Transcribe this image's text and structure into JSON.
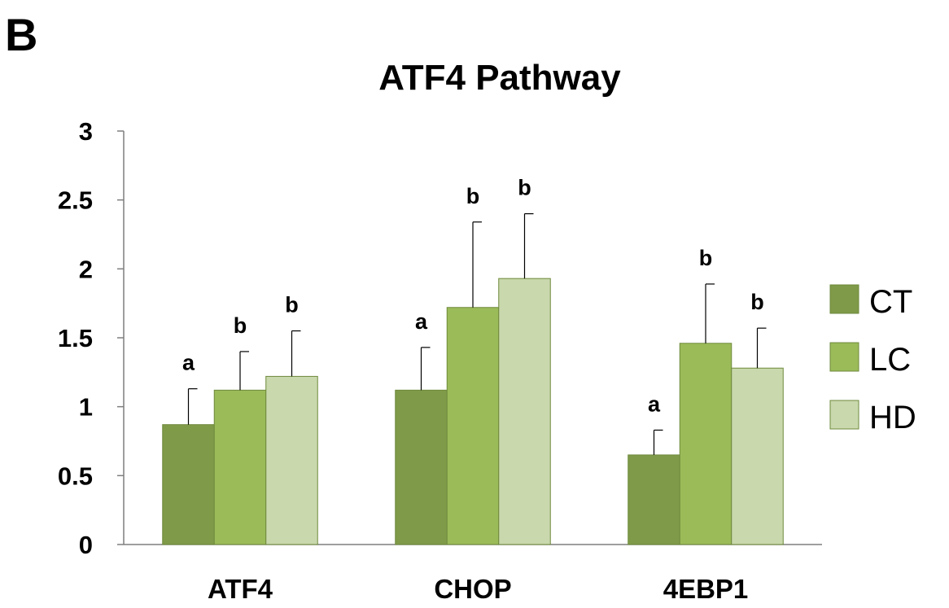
{
  "panel_label": "B",
  "chart_data": {
    "type": "bar",
    "title": "ATF4 Pathway",
    "xlabel": "",
    "ylabel": "",
    "ylim": [
      0,
      3
    ],
    "yticks": [
      "0",
      "0.5",
      "1",
      "1.5",
      "2",
      "2.5",
      "3"
    ],
    "categories": [
      "ATF4",
      "CHOP",
      "4EBP1"
    ],
    "grid": false,
    "legend_position": "right",
    "series": [
      {
        "name": "CT",
        "color": "#7f9a48",
        "values": [
          0.87,
          1.12,
          0.65
        ],
        "errors": [
          0.26,
          0.31,
          0.18
        ],
        "significance": [
          "a",
          "a",
          "a"
        ]
      },
      {
        "name": "LC",
        "color": "#9bbb59",
        "values": [
          1.12,
          1.72,
          1.46
        ],
        "errors": [
          0.28,
          0.62,
          0.43
        ],
        "significance": [
          "b",
          "b",
          "b"
        ]
      },
      {
        "name": "HD",
        "color": "#c9d8ad",
        "values": [
          1.22,
          1.93,
          1.28
        ],
        "errors": [
          0.33,
          0.47,
          0.29
        ],
        "significance": [
          "b",
          "b",
          "b"
        ]
      }
    ]
  }
}
